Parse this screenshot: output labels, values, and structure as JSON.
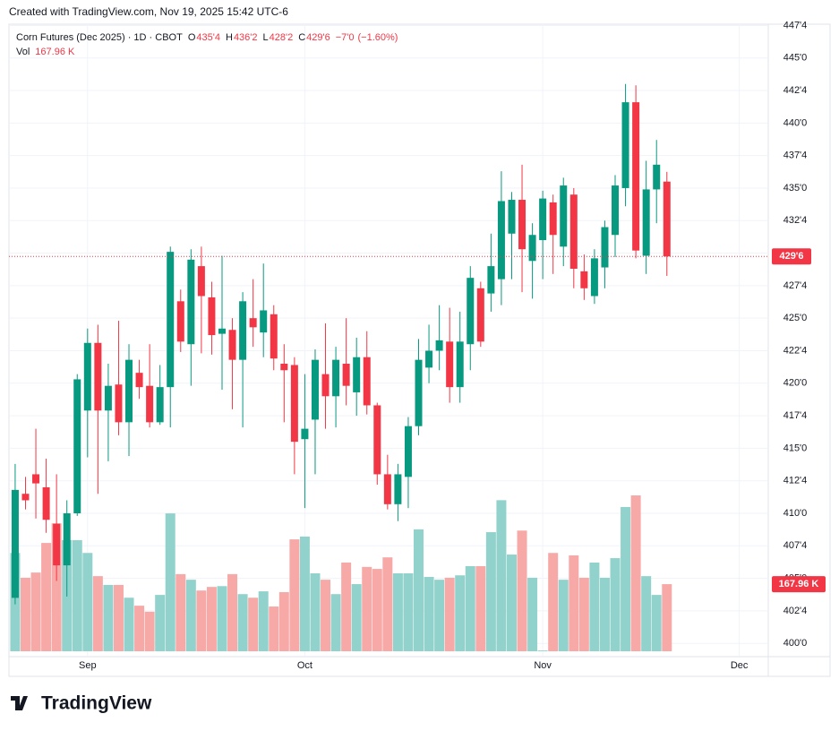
{
  "watermark": "Created with TradingView.com, Nov 19, 2025 15:42 UTC-6",
  "brand": "TradingView",
  "chart_data": {
    "type": "candlestick",
    "title": "Corn Futures (Dec 2025) · 1D · CBOT",
    "legend": {
      "open": {
        "name": "O",
        "value": {
          "value": 435.5,
          "label": "435'4"
        }
      },
      "high": {
        "name": "H",
        "value": {
          "value": 436.25,
          "label": "436'2"
        }
      },
      "low": {
        "name": "L",
        "value": {
          "value": 428.25,
          "label": "428'2"
        }
      },
      "close": {
        "name": "C",
        "value": {
          "value": 429.75,
          "label": "429'6"
        }
      },
      "change": {
        "value": -7,
        "label": "−7'0"
      },
      "change_percent": {
        "value": -1.6,
        "label": "(−1.60%)"
      }
    },
    "up_color": "#089981",
    "down_color": "#f23645",
    "volume_up_color": "#92d2cc",
    "volume_down_color": "#f7a9a7",
    "open": [
      403.5,
      411.5,
      413,
      412,
      409.2,
      406,
      410,
      417.9,
      423.1,
      417.9,
      419.9,
      417,
      420.8,
      419.8,
      417,
      419.7,
      426.3,
      423,
      429,
      426.6,
      423.8,
      424.1,
      421.8,
      425,
      423.9,
      425.3,
      421.5,
      421.4,
      415.7,
      417.2,
      420.7,
      419,
      421.5,
      419.3,
      422,
      418.3,
      413,
      410.7,
      412.8,
      416.7,
      421.2,
      422.5,
      423.2,
      419.7,
      423,
      427.3,
      426.9,
      428,
      431.5,
      434.1,
      429.4,
      431,
      433.9,
      430.5,
      434.5,
      428.6,
      426.7,
      428.9,
      431.4,
      435,
      441.6,
      429.8,
      434.9,
      435.5
    ],
    "high": [
      413.8,
      412.8,
      416.5,
      414.2,
      413,
      411,
      420.7,
      424.2,
      424.5,
      421.5,
      424.8,
      423,
      421.8,
      423,
      421.4,
      430.5,
      427.2,
      430.3,
      430.5,
      427.8,
      429.8,
      425,
      427,
      428,
      429.2,
      426,
      423,
      422,
      420.7,
      422.6,
      424.6,
      422.8,
      425,
      423.5,
      424,
      418.5,
      414.5,
      413.8,
      417.4,
      423.4,
      424.5,
      426,
      425.8,
      425.5,
      429,
      427.8,
      431.5,
      436.3,
      434.7,
      436.8,
      432.3,
      434.8,
      434.5,
      435.8,
      435,
      429.9,
      430.3,
      432.5,
      436,
      443,
      442.9,
      437.1,
      438.7,
      436.25
    ],
    "low": [
      403,
      410.3,
      409.6,
      408.5,
      404.8,
      403.6,
      409.8,
      414.3,
      411.5,
      414,
      416,
      414.4,
      418.8,
      416.6,
      416.8,
      416.6,
      422.4,
      419.8,
      422.3,
      422.2,
      419.5,
      418,
      416.6,
      422.8,
      422,
      421,
      417,
      413,
      410.4,
      413,
      416.5,
      416.6,
      418.3,
      417.5,
      417.6,
      412.2,
      410.3,
      409.4,
      410.4,
      416,
      420,
      421,
      418.5,
      418.5,
      421,
      422.8,
      425.5,
      426,
      428,
      427,
      426.5,
      428,
      428.4,
      429,
      427.3,
      426.4,
      426.1,
      427.3,
      429.7,
      433.6,
      429.6,
      428.4,
      432.3,
      428.25
    ],
    "close": [
      411.8,
      411.0,
      412.3,
      409.5,
      406,
      410,
      420.3,
      423.1,
      417.9,
      419.8,
      417,
      421.8,
      419.7,
      417,
      419.7,
      430.1,
      423.2,
      429.5,
      426.7,
      423.7,
      424.2,
      421.8,
      426.3,
      424.3,
      425.6,
      421.9,
      421,
      415.5,
      416.5,
      421.8,
      419,
      421.8,
      419.8,
      422,
      418.3,
      413,
      410.7,
      413,
      416.7,
      421.8,
      422.5,
      423.3,
      419.7,
      423.2,
      428.1,
      423.2,
      429,
      434,
      434.1,
      430.3,
      431.4,
      434.2,
      431.4,
      435.2,
      428.8,
      427.3,
      429.6,
      432,
      435.2,
      441.6,
      430.2,
      434.9,
      436.8,
      429.75
    ],
    "volume": {
      "name": "Vol",
      "value_label": "167.96 K",
      "values": [
        246,
        184,
        197,
        271,
        320,
        278,
        278,
        246,
        188,
        166,
        166,
        134,
        114,
        99,
        141,
        345,
        193,
        179,
        152,
        161,
        163,
        193,
        143,
        134,
        150,
        112,
        148,
        280,
        287,
        195,
        179,
        143,
        222,
        168,
        211,
        206,
        235,
        195,
        195,
        305,
        186,
        179,
        184,
        190,
        213,
        213,
        298,
        378,
        242,
        302,
        184,
        2,
        246,
        179,
        240,
        184,
        222,
        184,
        233,
        361,
        390,
        188,
        141,
        167.96
      ]
    },
    "last_price": {
      "value": 429.75,
      "label": "429'6"
    },
    "xlim": [
      -0.6,
      72.8
    ],
    "xticks": [
      {
        "value": 7,
        "label": "Sep"
      },
      {
        "value": 28,
        "label": "Oct"
      },
      {
        "value": 51,
        "label": "Nov"
      },
      {
        "value": 70,
        "label": "Dec"
      }
    ],
    "ylim": [
      399.05,
      447.6
    ],
    "yticks": [
      {
        "value": 400,
        "label": "400'0"
      },
      {
        "value": 402.5,
        "label": "402'4"
      },
      {
        "value": 405,
        "label": "405'0"
      },
      {
        "value": 407.5,
        "label": "407'4"
      },
      {
        "value": 410,
        "label": "410'0"
      },
      {
        "value": 412.5,
        "label": "412'4"
      },
      {
        "value": 415,
        "label": "415'0"
      },
      {
        "value": 417.5,
        "label": "417'4"
      },
      {
        "value": 420,
        "label": "420'0"
      },
      {
        "value": 422.5,
        "label": "422'4"
      },
      {
        "value": 425,
        "label": "425'0"
      },
      {
        "value": 427.5,
        "label": "427'4"
      },
      {
        "value": 430,
        "label": "430'0"
      },
      {
        "value": 432.5,
        "label": "432'4"
      },
      {
        "value": 435,
        "label": "435'0"
      },
      {
        "value": 437.5,
        "label": "437'4"
      },
      {
        "value": 440,
        "label": "440'0"
      },
      {
        "value": 442.5,
        "label": "442'4"
      },
      {
        "value": 445,
        "label": "445'0"
      },
      {
        "value": 447.5,
        "label": "447'4"
      }
    ],
    "grid": true
  }
}
